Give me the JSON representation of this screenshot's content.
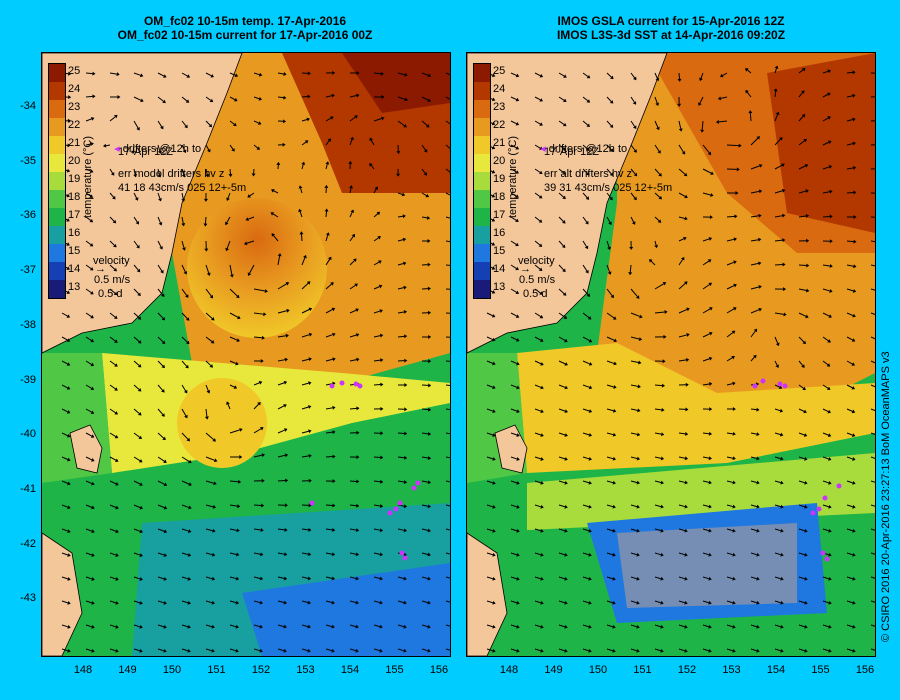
{
  "left": {
    "title1": "OM_fc02 10-15m temp. 17-Apr-2016",
    "title2": "OM_fc02 10-15m current for 17-Apr-2016 00Z",
    "drifters_line1": "drifters @12h to",
    "drifters_line2": "17-Apr 12Z",
    "err_line1": "err model drifters hv z",
    "err_line2": "41 18 43cm/s 025 12+-5m",
    "velocity_label": "velocity",
    "velocity_speed": "0.5 m/s",
    "velocity_time": "0.5 d"
  },
  "right": {
    "title1": "IMOS GSLA current for 15-Apr-2016 12Z",
    "title2": "IMOS L3S-3d SST at 14-Apr-2016 09:20Z",
    "drifters_line1": "drifters @12h to",
    "drifters_line2": "17-Apr 12Z",
    "err_line1": "err alt drifters hv z",
    "err_line2": "39 31 43cm/s 025 12+-5m",
    "velocity_label": "velocity",
    "velocity_speed": "0.5 m/s",
    "velocity_time": "0.5 d"
  },
  "colorbar": {
    "label": "temperature (°C)",
    "ticks": [
      "25",
      "24",
      "23",
      "22",
      "21",
      "20",
      "19",
      "18",
      "17",
      "16",
      "15",
      "14",
      "13"
    ],
    "colors": [
      "#8b1a00",
      "#b33800",
      "#d96a10",
      "#e89a20",
      "#f0c828",
      "#e8e83c",
      "#a8dc3c",
      "#50c846",
      "#1eb448",
      "#18a0a0",
      "#1e78e0",
      "#1440b4",
      "#1a1a78"
    ]
  },
  "axes": {
    "lat_ticks": [
      "-34",
      "-35",
      "-36",
      "-37",
      "-38",
      "-39",
      "-40",
      "-41",
      "-42",
      "-43"
    ],
    "lon_ticks": [
      "148",
      "149",
      "150",
      "151",
      "152",
      "153",
      "154",
      "155",
      "156"
    ]
  },
  "credit": "© CSIRO 2016   20-Apr-2016 23:27:13 BoM OceanMAPS v3",
  "colors": {
    "background": "#00ccff",
    "land": "#f4c79a",
    "drifter": "#cc33ff"
  }
}
